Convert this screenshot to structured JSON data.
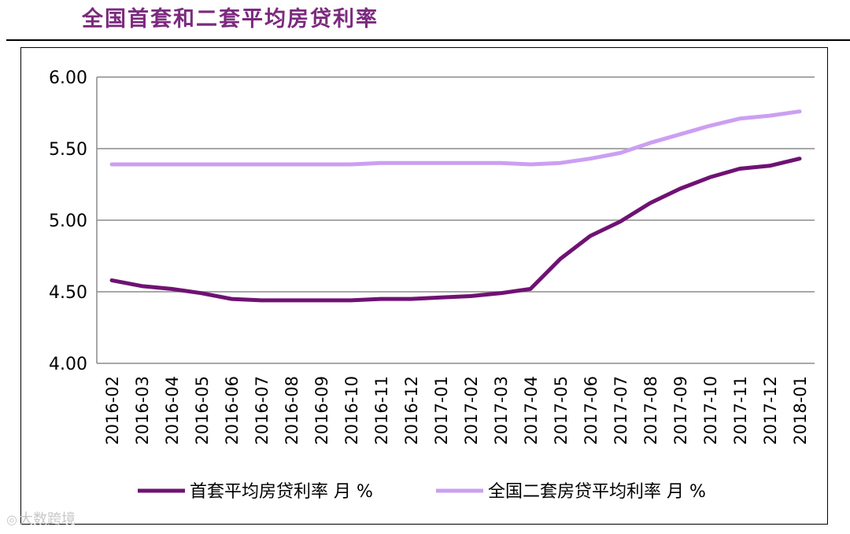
{
  "header": {
    "title": "全国首套和二套平均房贷利率"
  },
  "watermark": {
    "icon": "weibo-icon",
    "text": "大数跨境"
  },
  "chart_data": {
    "type": "line",
    "title": "全国首套和二套平均房贷利率",
    "xlabel": "",
    "ylabel": "",
    "categories": [
      "2016-02",
      "2016-03",
      "2016-04",
      "2016-05",
      "2016-06",
      "2016-07",
      "2016-08",
      "2016-09",
      "2016-10",
      "2016-11",
      "2016-12",
      "2017-01",
      "2017-02",
      "2017-03",
      "2017-04",
      "2017-05",
      "2017-06",
      "2017-07",
      "2017-08",
      "2017-09",
      "2017-10",
      "2017-11",
      "2017-12",
      "2018-01"
    ],
    "ylim": [
      4.0,
      6.0
    ],
    "yticks": [
      "4.00",
      "4.50",
      "5.00",
      "5.50",
      "6.00"
    ],
    "grid": true,
    "legend_position": "bottom",
    "series": [
      {
        "name": "首套平均房贷利率 月 %",
        "color": "#6f1273",
        "values": [
          4.58,
          4.54,
          4.52,
          4.49,
          4.45,
          4.44,
          4.44,
          4.44,
          4.44,
          4.45,
          4.45,
          4.46,
          4.47,
          4.49,
          4.52,
          4.73,
          4.89,
          4.99,
          5.12,
          5.22,
          5.3,
          5.36,
          5.38,
          5.43
        ]
      },
      {
        "name": "全国二套房贷平均利率 月 %",
        "color": "#cc9ff2",
        "values": [
          5.39,
          5.39,
          5.39,
          5.39,
          5.39,
          5.39,
          5.39,
          5.39,
          5.39,
          5.4,
          5.4,
          5.4,
          5.4,
          5.4,
          5.39,
          5.4,
          5.43,
          5.47,
          5.54,
          5.6,
          5.66,
          5.71,
          5.73,
          5.76
        ]
      }
    ]
  }
}
